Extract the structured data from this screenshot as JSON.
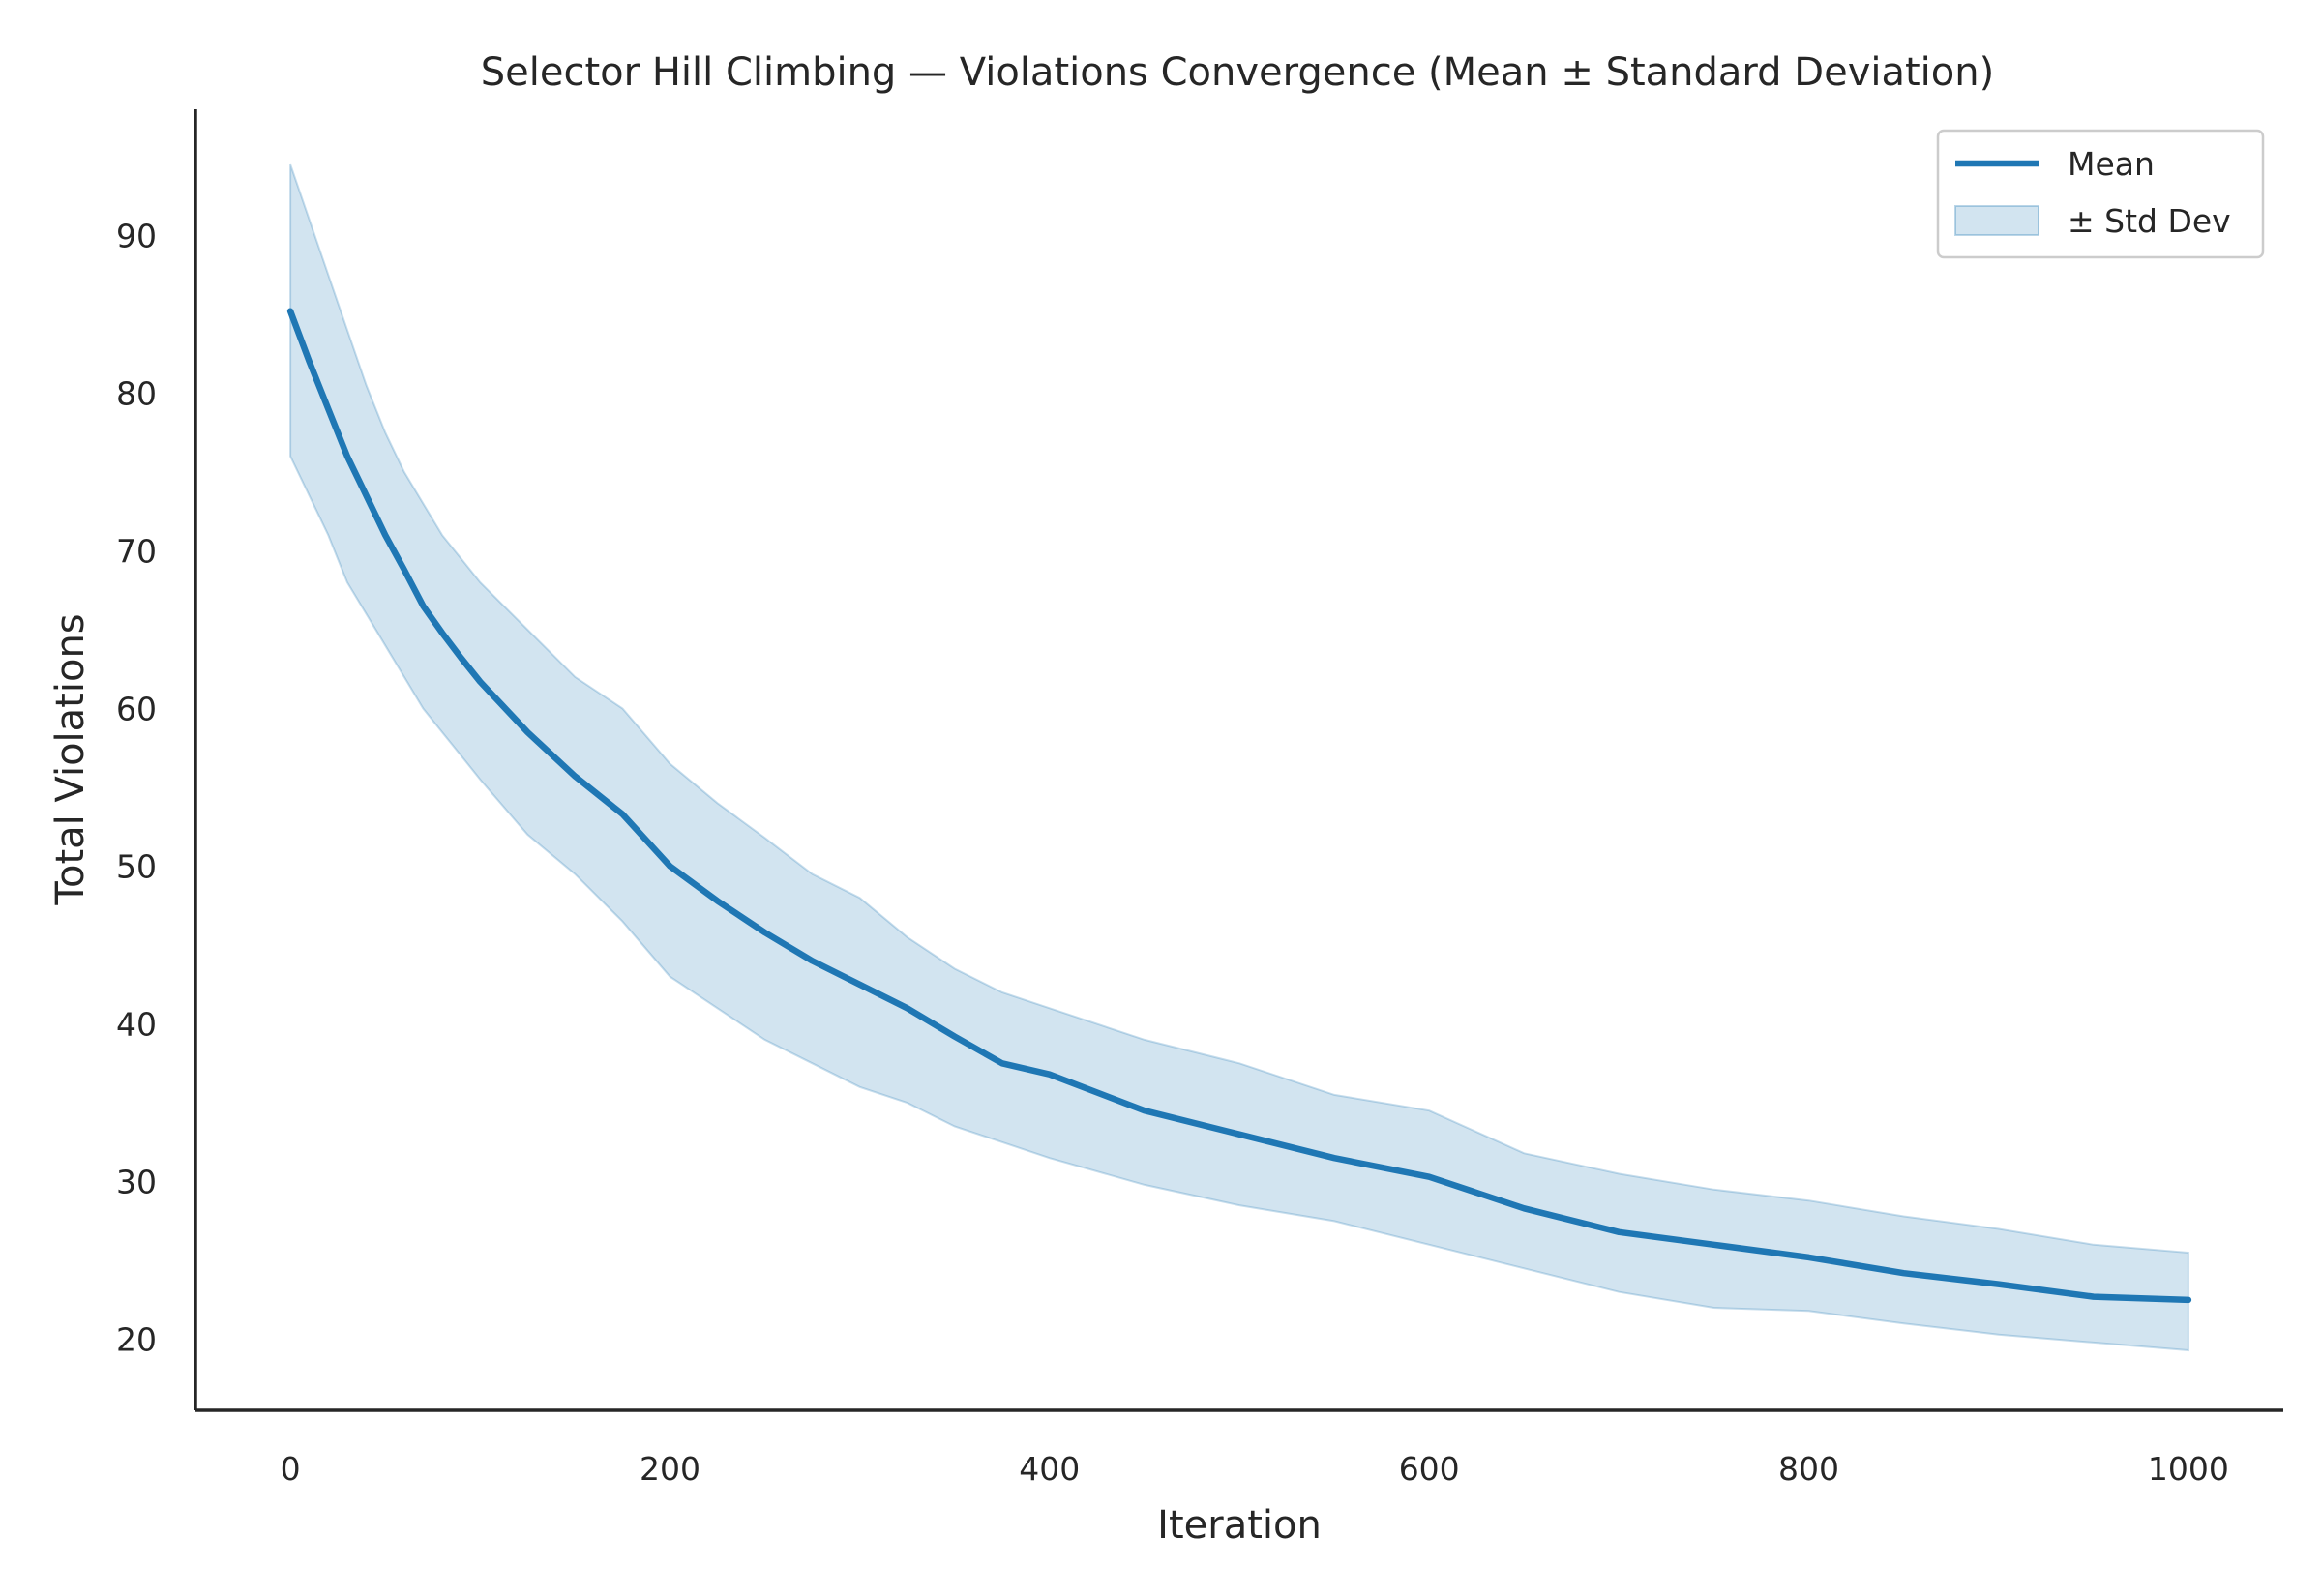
{
  "chart_data": {
    "type": "line",
    "title": "Selector Hill Climbing — Violations Convergence (Mean ± Standard Deviation)",
    "xlabel": "Iteration",
    "ylabel": "Total Violations",
    "xlim": [
      -50,
      1050
    ],
    "ylim": [
      15.5,
      98
    ],
    "xticks": [
      0,
      200,
      400,
      600,
      800,
      1000
    ],
    "yticks": [
      20,
      30,
      40,
      50,
      60,
      70,
      80,
      90
    ],
    "grid": false,
    "legend_position": "top-right",
    "colors": {
      "line": "#1f77b4",
      "band": "#1f77b4",
      "axis": "#262626"
    },
    "series": [
      {
        "name": "Mean",
        "kind": "line",
        "x": [
          0,
          10,
          20,
          30,
          40,
          50,
          60,
          70,
          80,
          90,
          100,
          125,
          150,
          175,
          200,
          225,
          250,
          275,
          300,
          325,
          350,
          375,
          400,
          450,
          500,
          550,
          600,
          650,
          700,
          750,
          800,
          850,
          900,
          950,
          1000
        ],
        "y": [
          85.2,
          82.0,
          79.0,
          76.0,
          73.5,
          71.0,
          68.8,
          66.5,
          64.8,
          63.2,
          61.7,
          58.5,
          55.7,
          53.3,
          50.0,
          47.8,
          45.8,
          44.0,
          42.5,
          41.0,
          39.2,
          37.5,
          36.8,
          34.5,
          33.0,
          31.5,
          30.3,
          28.3,
          26.8,
          26.0,
          25.2,
          24.2,
          23.5,
          22.7,
          22.5
        ]
      },
      {
        "name": "± Std Dev",
        "kind": "band",
        "x": [
          0,
          10,
          20,
          30,
          40,
          50,
          60,
          70,
          80,
          90,
          100,
          125,
          150,
          175,
          200,
          225,
          250,
          275,
          300,
          325,
          350,
          375,
          400,
          450,
          500,
          550,
          600,
          650,
          700,
          750,
          800,
          850,
          900,
          950,
          1000
        ],
        "upper": [
          94.5,
          91.0,
          87.5,
          84.0,
          80.5,
          77.5,
          75.0,
          73.0,
          71.0,
          69.5,
          68.0,
          65.0,
          62.0,
          60.0,
          56.5,
          54.0,
          51.8,
          49.5,
          48.0,
          45.5,
          43.5,
          42.0,
          41.0,
          39.0,
          37.5,
          35.5,
          34.5,
          31.8,
          30.5,
          29.5,
          28.8,
          27.8,
          27.0,
          26.0,
          25.5
        ],
        "lower": [
          76.0,
          73.5,
          71.0,
          68.0,
          66.0,
          64.0,
          62.0,
          60.0,
          58.5,
          57.0,
          55.5,
          52.0,
          49.5,
          46.5,
          43.0,
          41.0,
          39.0,
          37.5,
          36.0,
          35.0,
          33.5,
          32.5,
          31.5,
          29.8,
          28.5,
          27.5,
          26.0,
          24.5,
          23.0,
          22.0,
          21.8,
          21.0,
          20.3,
          19.8,
          19.3
        ]
      }
    ]
  }
}
